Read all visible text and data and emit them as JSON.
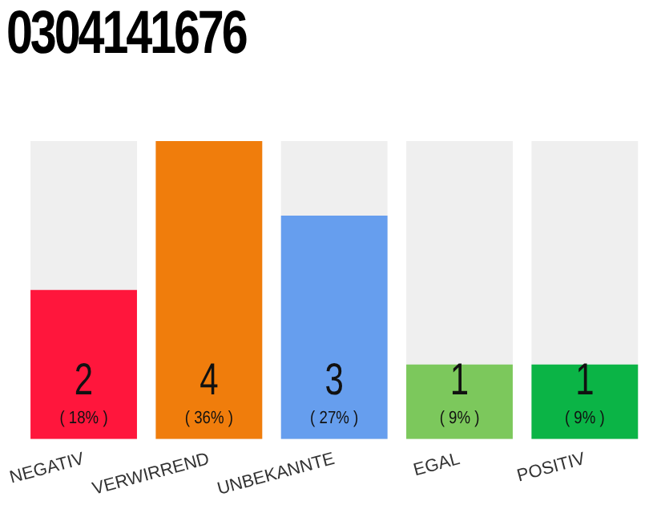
{
  "chart_data": {
    "type": "bar",
    "title": "0304141676",
    "categories": [
      "NEGATIV",
      "VERWIRREND",
      "UNBEKANNTE",
      "EGAL",
      "POSITIV"
    ],
    "values": [
      2,
      4,
      3,
      1,
      1
    ],
    "colors": [
      "#ff163c",
      "#f07d0c",
      "#669eee",
      "#7cc85c",
      "#0bb446"
    ],
    "value_labels": [
      "2\n( 18% )",
      "4\n( 36% )",
      "3\n( 27% )",
      "1\n( 9% )",
      "1\n( 9% )"
    ],
    "ylim": [
      0,
      4
    ],
    "tick_labels": "x",
    "grid": false,
    "legend": false
  }
}
